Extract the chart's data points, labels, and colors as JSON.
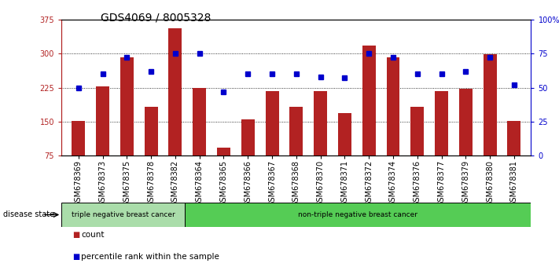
{
  "title": "GDS4069 / 8005328",
  "samples": [
    "GSM678369",
    "GSM678373",
    "GSM678375",
    "GSM678378",
    "GSM678382",
    "GSM678364",
    "GSM678365",
    "GSM678366",
    "GSM678367",
    "GSM678368",
    "GSM678370",
    "GSM678371",
    "GSM678372",
    "GSM678374",
    "GSM678376",
    "GSM678377",
    "GSM678379",
    "GSM678380",
    "GSM678381"
  ],
  "counts": [
    152,
    228,
    291,
    183,
    355,
    225,
    92,
    155,
    218,
    183,
    218,
    168,
    318,
    291,
    183,
    218,
    222,
    298,
    152
  ],
  "percentiles": [
    50,
    60,
    72,
    62,
    75,
    75,
    47,
    60,
    60,
    60,
    58,
    57,
    75,
    72,
    60,
    60,
    62,
    72,
    52
  ],
  "group1_count": 5,
  "group1_label": "triple negative breast cancer",
  "group2_label": "non-triple negative breast cancer",
  "group1_color": "#aaddaa",
  "group2_color": "#55cc55",
  "bar_color": "#B22222",
  "dot_color": "#0000CC",
  "ymin": 75,
  "ymax": 375,
  "yticks": [
    75,
    150,
    225,
    300,
    375
  ],
  "ylabels": [
    "75",
    "150",
    "225",
    "300",
    "375"
  ],
  "right_yticks": [
    0,
    25,
    50,
    75,
    100
  ],
  "right_ylabels": [
    "0",
    "25",
    "50",
    "75",
    "100%"
  ],
  "grid_values": [
    150,
    225,
    300
  ],
  "disease_state_label": "disease state",
  "legend_count_label": "count",
  "legend_percentile_label": "percentile rank within the sample",
  "title_fontsize": 10,
  "tick_fontsize": 7,
  "bar_width": 0.55
}
